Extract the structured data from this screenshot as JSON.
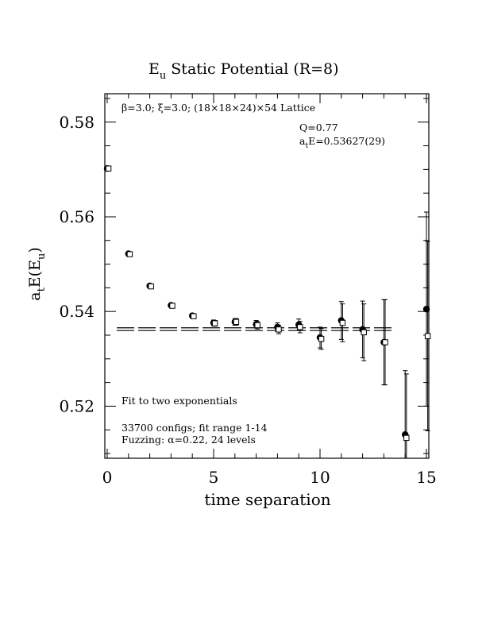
{
  "chart_data": {
    "type": "scatter",
    "title_main": "E",
    "title_sub": "u",
    "title_rest": " Static Potential (R=8)",
    "xlabel": "time separation",
    "ylabel_parts": [
      "a",
      "t",
      "E(E",
      "u",
      ")"
    ],
    "xlim": [
      0,
      15
    ],
    "ylim": [
      0.509,
      0.586
    ],
    "x_ticks": [
      0,
      5,
      10,
      15
    ],
    "x_tick_labels": [
      "0",
      "5",
      "10",
      "15"
    ],
    "y_ticks": [
      0.52,
      0.54,
      0.56,
      0.58
    ],
    "y_tick_labels": [
      "0.52",
      "0.54",
      "0.56",
      "0.58"
    ],
    "annotations": {
      "lattice": "β=3.0; ξ=3.0; (18×18×24)×54 Lattice",
      "q_value": "Q=0.77",
      "energy_parts": [
        "a",
        "t",
        "E=0.53627(29)"
      ],
      "fit_label": "Fit to two exponentials",
      "configs": "33700 configs; fit range 1-14",
      "fuzzing": "Fuzzing: α=0.22, 24 levels"
    },
    "fit": {
      "value": 0.53627,
      "error": 0.00029,
      "x_range": [
        1,
        14
      ]
    },
    "series": [
      {
        "marker": "filled-circle",
        "x": [
          0,
          1,
          2,
          3,
          4,
          5,
          6,
          7,
          8,
          9,
          10,
          11,
          12,
          13,
          14,
          15
        ],
        "y": [
          0.5702,
          0.5522,
          0.5454,
          0.5413,
          0.5391,
          0.5376,
          0.5378,
          0.5373,
          0.5367,
          0.5372,
          0.5345,
          0.5381,
          0.5362,
          0.5335,
          0.514,
          0.5405
        ],
        "err": [
          0.0002,
          0.0003,
          0.0004,
          0.0004,
          0.0005,
          0.0006,
          0.0007,
          0.0008,
          0.0009,
          0.0012,
          0.0022,
          0.004,
          0.006,
          0.009,
          0.0135,
          0.0205
        ]
      },
      {
        "marker": "open-square",
        "x": [
          0.06,
          1.06,
          2.06,
          3.06,
          4.06,
          5.06,
          6.06,
          7.06,
          8.06,
          9.06,
          10.06,
          11.06,
          12.06,
          13.06,
          14.06,
          15.06
        ],
        "y": [
          0.5702,
          0.5521,
          0.5453,
          0.5412,
          0.539,
          0.5375,
          0.5378,
          0.5371,
          0.5362,
          0.5367,
          0.5342,
          0.5376,
          0.5356,
          0.5335,
          0.5133,
          0.5348
        ],
        "err": [
          0.0002,
          0.0003,
          0.0004,
          0.0004,
          0.0005,
          0.0006,
          0.0007,
          0.0008,
          0.0009,
          0.0012,
          0.0022,
          0.004,
          0.006,
          0.009,
          0.0135,
          0.02
        ]
      }
    ]
  }
}
